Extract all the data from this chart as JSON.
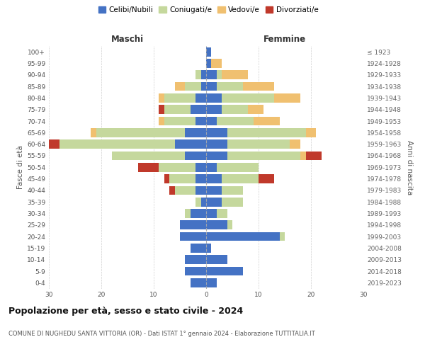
{
  "age_groups": [
    "0-4",
    "5-9",
    "10-14",
    "15-19",
    "20-24",
    "25-29",
    "30-34",
    "35-39",
    "40-44",
    "45-49",
    "50-54",
    "55-59",
    "60-64",
    "65-69",
    "70-74",
    "75-79",
    "80-84",
    "85-89",
    "90-94",
    "95-99",
    "100+"
  ],
  "birth_years": [
    "2019-2023",
    "2014-2018",
    "2009-2013",
    "2004-2008",
    "1999-2003",
    "1994-1998",
    "1989-1993",
    "1984-1988",
    "1979-1983",
    "1974-1978",
    "1969-1973",
    "1964-1968",
    "1959-1963",
    "1954-1958",
    "1949-1953",
    "1944-1948",
    "1939-1943",
    "1934-1938",
    "1929-1933",
    "1924-1928",
    "≤ 1923"
  ],
  "maschi_celibi": [
    3,
    4,
    4,
    3,
    5,
    5,
    3,
    1,
    2,
    2,
    2,
    4,
    6,
    4,
    2,
    3,
    2,
    1,
    1,
    0,
    0
  ],
  "maschi_coniugati": [
    0,
    0,
    0,
    0,
    0,
    0,
    1,
    1,
    4,
    5,
    7,
    14,
    22,
    17,
    6,
    5,
    6,
    3,
    1,
    0,
    0
  ],
  "maschi_vedovi": [
    0,
    0,
    0,
    0,
    0,
    0,
    0,
    0,
    0,
    0,
    0,
    0,
    0,
    1,
    1,
    0,
    1,
    2,
    0,
    0,
    0
  ],
  "maschi_divorziati": [
    0,
    0,
    0,
    0,
    0,
    0,
    0,
    0,
    1,
    1,
    4,
    0,
    2,
    0,
    0,
    1,
    0,
    0,
    0,
    0,
    0
  ],
  "femmine_celibi": [
    2,
    7,
    4,
    1,
    14,
    4,
    2,
    3,
    3,
    3,
    2,
    4,
    4,
    4,
    2,
    3,
    3,
    2,
    2,
    1,
    1
  ],
  "femmine_coniugati": [
    0,
    0,
    0,
    0,
    1,
    1,
    2,
    4,
    4,
    7,
    8,
    14,
    12,
    15,
    7,
    5,
    10,
    5,
    1,
    0,
    0
  ],
  "femmine_vedovi": [
    0,
    0,
    0,
    0,
    0,
    0,
    0,
    0,
    0,
    0,
    0,
    1,
    2,
    2,
    5,
    3,
    5,
    6,
    5,
    2,
    0
  ],
  "femmine_divorziati": [
    0,
    0,
    0,
    0,
    0,
    0,
    0,
    0,
    0,
    3,
    0,
    3,
    0,
    0,
    0,
    0,
    0,
    0,
    0,
    0,
    0
  ],
  "colors": {
    "celibi": "#4472c4",
    "coniugati": "#c5d89d",
    "vedovi": "#f0c070",
    "divorziati": "#c0392b"
  },
  "xlim": 30,
  "title": "Popolazione per età, sesso e stato civile - 2024",
  "subtitle": "COMUNE DI NUGHEDU SANTA VITTORIA (OR) - Dati ISTAT 1° gennaio 2024 - Elaborazione TUTTITALIA.IT",
  "ylabel_left": "Fasce di età",
  "ylabel_right": "Anni di nascita",
  "xlabel_maschi": "Maschi",
  "xlabel_femmine": "Femmine",
  "bg_color": "#ffffff",
  "grid_color": "#cccccc"
}
